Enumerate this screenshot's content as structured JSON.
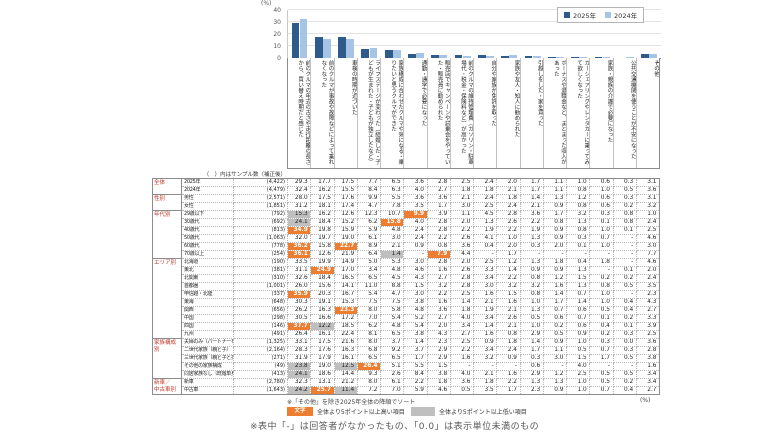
{
  "chart": {
    "pct_label": "(%)"
  },
  "chart_data": {
    "type": "bar",
    "title": "クルマ購入のきっかけ",
    "ylabel": "(%)",
    "ylim": [
      0,
      40
    ],
    "yticks": [
      0,
      10,
      20,
      30,
      40
    ],
    "grid": true,
    "legend_position": "top-right",
    "categories": [
      "前のクルマの年式の古さや走行距離の長さから、買い替え時期だと感じた",
      "前のクルマが事故や故障などによって乗れなくなった",
      "車検の時期が近づいた",
      "ライフステージが変わった（結婚した・子どもが生まれた・子どもが独立したなど）",
      "家族構成に合わせたクルマや気になる・乗りたいと思うクルマができた",
      "通勤・通学で必要になった",
      "販売店でキャンペーンや試乗会をやっていた・販売員に勧められた",
      "前のクルマの維持管理費（ガソリン・駐車場代・税金・保険料など）が高かった",
      "自分や家族が免許を取った",
      "家族や友人・知人に勧められた",
      "引越しをした・家を買った",
      "ボーナスや退職金など、まとまった収入があった",
      "カーシェアリングやレンタカーに乗ってみて欲しくなった",
      "家族・親族の介護で必要になった",
      "公共交通機関を使うことが不安になった",
      "その他"
    ],
    "series": [
      {
        "name": "2025年",
        "color": "#2e5b8c",
        "values": [
          29.3,
          17.7,
          17.5,
          7.7,
          6.5,
          3.6,
          2.8,
          2.5,
          2.4,
          2.0,
          1.7,
          1.1,
          1.0,
          0.6,
          0.3,
          3.1
        ]
      },
      {
        "name": "2024年",
        "color": "#a6c4e4",
        "values": [
          32.4,
          16.2,
          15.5,
          8.4,
          6.3,
          4.0,
          2.7,
          1.8,
          1.8,
          2.1,
          1.7,
          1.1,
          0.8,
          1.0,
          0.5,
          3.6
        ]
      }
    ]
  },
  "table": {
    "sample_note": "（　）内はサンプル数（補正後）",
    "groups": [
      {
        "label": "全体",
        "rows": [
          {
            "label": "2025年",
            "n": "(4,422)",
            "values": [
              "29.3",
              "17.7",
              "17.5",
              "7.7",
              "6.5",
              "3.6",
              "2.8",
              "2.5",
              "2.4",
              "2.0",
              "1.7",
              "1.1",
              "1.0",
              "0.6",
              "0.3",
              "3.1"
            ]
          },
          {
            "label": "2024年",
            "n": "(4,479)",
            "values": [
              "32.4",
              "16.2",
              "15.5",
              "8.4",
              "6.3",
              "4.0",
              "2.7",
              "1.8",
              "1.8",
              "2.1",
              "1.7",
              "1.1",
              "0.8",
              "1.0",
              "0.5",
              "3.6"
            ]
          }
        ]
      },
      {
        "label": "性別",
        "rows": [
          {
            "label": "男性",
            "n": "(2,571)",
            "values": [
              "28.0",
              "17.5",
              "17.6",
              "9.9",
              "5.5",
              "3.6",
              "3.6",
              "2.1",
              "2.4",
              "1.8",
              "1.4",
              "1.3",
              "1.2",
              "0.6",
              "0.3",
              "3.1"
            ]
          },
          {
            "label": "女性",
            "n": "(1,851)",
            "values": [
              "31.2",
              "18.1",
              "17.4",
              "4.7",
              "7.8",
              "3.5",
              "1.7",
              "3.0",
              "2.5",
              "2.4",
              "2.1",
              "0.9",
              "0.8",
              "0.6",
              "0.2",
              "3.2"
            ]
          }
        ]
      },
      {
        "label": "年代別",
        "rows": [
          {
            "label": "29歳以下",
            "n": "(792)",
            "values": [
              "15.3",
              "16.2",
              "12.6",
              "12.3",
              "10.7",
              "9.9",
              "3.9",
              "1.1",
              "4.5",
              "2.8",
              "3.6",
              "1.7",
              "3.2",
              "0.3",
              "0.8",
              "1.0"
            ],
            "hl": {
              "0": "lo",
              "5": "hi"
            }
          },
          {
            "label": "30歳代",
            "n": "(692)",
            "values": [
              "24.1",
              "18.4",
              "15.2",
              "6.2",
              "15.8",
              "4.0",
              "2.8",
              "2.0",
              "1.3",
              "2.6",
              "2.2",
              "0.8",
              "1.3",
              "0.1",
              "0.8",
              "2.4"
            ],
            "hl": {
              "0": "lo",
              "4": "hi"
            }
          },
          {
            "label": "40歳代",
            "n": "(813)",
            "values": [
              "34.9",
              "19.8",
              "15.9",
              "5.9",
              "4.8",
              "2.4",
              "2.8",
              "2.2",
              "1.9",
              "2.2",
              "1.9",
              "0.9",
              "0.8",
              "1.0",
              "0.1",
              "2.5"
            ],
            "hl": {
              "0": "hi"
            }
          },
          {
            "label": "50歳代",
            "n": "(1,063)",
            "values": [
              "32.0",
              "19.7",
              "19.0",
              "6.1",
              "3.0",
              "2.4",
              "2.2",
              "2.6",
              "4.1",
              "1.0",
              "1.3",
              "0.9",
              "0.3",
              "0.7",
              "-",
              "4.6"
            ]
          },
          {
            "label": "60歳代",
            "n": "(778)",
            "values": [
              "36.2",
              "15.8",
              "22.7",
              "8.9",
              "2.1",
              "0.9",
              "0.8",
              "3.6",
              "0.4",
              "2.0",
              "0.3",
              "2.0",
              "0.1",
              "1.0",
              "-",
              "3.0"
            ],
            "hl": {
              "0": "hi",
              "2": "hi"
            }
          },
          {
            "label": "70歳以上",
            "n": "(254)",
            "values": [
              "36.1",
              "12.6",
              "21.9",
              "6.4",
              "1.4",
              "-",
              "7.9",
              "4.4",
              "-",
              "1.7",
              "-",
              "-",
              "-",
              "-",
              "-",
              "7.7"
            ],
            "hl": {
              "0": "hi",
              "4": "lo",
              "6": "hi"
            }
          }
        ]
      },
      {
        "label": "エリア別",
        "rows": [
          {
            "label": "北海道",
            "n": "(190)",
            "values": [
              "33.5",
              "19.9",
              "14.9",
              "5.0",
              "5.3",
              "3.0",
              "2.8",
              "2.0",
              "2.5",
              "1.2",
              "1.3",
              "1.8",
              "0.4",
              "1.8",
              "-",
              "4.6"
            ]
          },
          {
            "label": "東北",
            "n": "(381)",
            "values": [
              "31.1",
              "24.9",
              "17.0",
              "3.4",
              "4.8",
              "4.6",
              "1.6",
              "2.6",
              "3.3",
              "1.4",
              "0.9",
              "0.9",
              "1.3",
              "-",
              "0.1",
              "2.0"
            ],
            "hl": {
              "1": "hi"
            }
          },
          {
            "label": "北関東",
            "n": "(310)",
            "values": [
              "32.6",
              "18.4",
              "16.5",
              "6.5",
              "4.5",
              "4.3",
              "2.7",
              "2.8",
              "3.4",
              "2.2",
              "0.8",
              "1.2",
              "1.5",
              "0.2",
              "0.2",
              "2.4"
            ]
          },
          {
            "label": "首都圏",
            "n": "(1,001)",
            "values": [
              "26.0",
              "15.6",
              "14.1",
              "11.0",
              "8.8",
              "1.5",
              "3.2",
              "2.8",
              "3.0",
              "3.2",
              "3.2",
              "1.6",
              "1.3",
              "0.8",
              "0.5",
              "3.5"
            ]
          },
          {
            "label": "甲信越・北陸",
            "n": "(337)",
            "values": [
              "35.9",
              "20.3",
              "16.7",
              "5.4",
              "4.7",
              "3.0",
              "2.2",
              "2.5",
              "1.6",
              "1.5",
              "0.8",
              "1.4",
              "0.7",
              "1.0",
              "-",
              "2.3"
            ],
            "hl": {
              "0": "hi"
            }
          },
          {
            "label": "東海",
            "n": "(648)",
            "values": [
              "30.3",
              "19.1",
              "15.3",
              "7.5",
              "7.5",
              "3.8",
              "1.6",
              "1.4",
              "2.1",
              "1.6",
              "1.0",
              "1.7",
              "1.4",
              "1.0",
              "0.4",
              "4.3"
            ]
          },
          {
            "label": "関西",
            "n": "(656)",
            "values": [
              "26.2",
              "16.3",
              "23.3",
              "8.0",
              "5.8",
              "4.8",
              "3.6",
              "1.8",
              "1.9",
              "2.1",
              "1.3",
              "0.7",
              "0.6",
              "0.5",
              "0.4",
              "2.7"
            ],
            "hl": {
              "2": "hi"
            }
          },
          {
            "label": "中国",
            "n": "(298)",
            "values": [
              "30.5",
              "16.6",
              "17.2",
              "7.0",
              "5.4",
              "5.2",
              "2.7",
              "4.0",
              "3.4",
              "2.6",
              "0.5",
              "0.6",
              "0.7",
              "0.1",
              "0.2",
              "3.3"
            ]
          },
          {
            "label": "四国",
            "n": "(146)",
            "values": [
              "37.7",
              "12.2",
              "18.5",
              "6.2",
              "4.8",
              "5.4",
              "2.0",
              "3.4",
              "1.4",
              "2.1",
              "1.0",
              "0.2",
              "0.6",
              "0.4",
              "0.1",
              "3.9"
            ],
            "hl": {
              "0": "hi",
              "1": "lo"
            }
          },
          {
            "label": "九州",
            "n": "(491)",
            "values": [
              "26.4",
              "16.1",
              "22.4",
              "8.1",
              "6.5",
              "3.8",
              "4.3",
              "2.7",
              "1.6",
              "0.8",
              "2.9",
              "0.5",
              "0.9",
              "0.2",
              "0.3",
              "2.5"
            ]
          }
        ]
      },
      {
        "label": "家族構成別",
        "rows": [
          {
            "label": "夫婦のみ（パートナーを含む）",
            "n": "(1,325)",
            "values": [
              "33.1",
              "17.5",
              "21.6",
              "8.0",
              "3.7",
              "1.4",
              "2.3",
              "2.5",
              "0.9",
              "1.8",
              "1.4",
              "0.9",
              "1.0",
              "0.3",
              "0.0",
              "3.6"
            ]
          },
          {
            "label": "二世代家族（親と子）",
            "n": "(2,164)",
            "values": [
              "28.3",
              "17.6",
              "16.3",
              "6.8",
              "9.2",
              "3.7",
              "2.9",
              "2.2",
              "3.4",
              "2.4",
              "1.7",
              "1.1",
              "0.5",
              "0.7",
              "0.3",
              "2.8"
            ]
          },
          {
            "label": "三世代家族（親と子と孫）",
            "n": "(271)",
            "values": [
              "31.9",
              "17.9",
              "16.1",
              "6.5",
              "6.5",
              "1.7",
              "2.9",
              "1.6",
              "3.2",
              "0.9",
              "0.3",
              "3.0",
              "1.5",
              "1.7",
              "0.5",
              "3.8"
            ]
          },
          {
            "label": "その他の家族構成",
            "n": "(49)",
            "values": [
              "23.8",
              "19.0",
              "12.5",
              "26.4",
              "5.1",
              "5.5",
              "1.5",
              "-",
              "-",
              "-",
              "0.6",
              "-",
              "4.0",
              "-",
              "-",
              "1.6"
            ],
            "hl": {
              "0": "lo",
              "2": "lo",
              "3": "hi"
            }
          },
          {
            "label": "同居家族なし（既婚単身含む）",
            "n": "(413)",
            "values": [
              "24.1",
              "18.6",
              "14.4",
              "9.3",
              "2.6",
              "8.4",
              "3.8",
              "4.0",
              "2.1",
              "1.6",
              "2.9",
              "1.2",
              "2.5",
              "0.5",
              "0.5",
              "3.4"
            ],
            "hl": {
              "0": "lo"
            }
          }
        ]
      },
      {
        "label": "新車／\n中古車別",
        "rows": [
          {
            "label": "新車",
            "n": "(2,780)",
            "values": [
              "32.3",
              "13.1",
              "21.2",
              "8.0",
              "6.1",
              "2.2",
              "1.8",
              "3.6",
              "1.8",
              "2.2",
              "1.3",
              "1.3",
              "1.0",
              "0.5",
              "0.2",
              "3.4"
            ]
          },
          {
            "label": "中古車",
            "n": "(1,643)",
            "values": [
              "24.2",
              "25.7",
              "11.4",
              "7.2",
              "7.0",
              "5.9",
              "4.6",
              "0.5",
              "3.5",
              "1.7",
              "2.3",
              "0.9",
              "1.0",
              "0.7",
              "0.4",
              "2.7"
            ],
            "hl": {
              "0": "lo",
              "1": "hi",
              "2": "lo"
            }
          }
        ]
      }
    ]
  },
  "footer": {
    "sort_note": "※「その他」を除き2025年全体の降順でソート",
    "pct_label": "(%)",
    "hl_high_sample": "文字",
    "hl_high_label": "全体より5ポイント以上高い項目",
    "hl_low_label": "全体より5ポイント以上低い項目",
    "bottom_note": "※表中「-」は回答者がなかったもの、「0.0」は表示単位未満のもの"
  }
}
